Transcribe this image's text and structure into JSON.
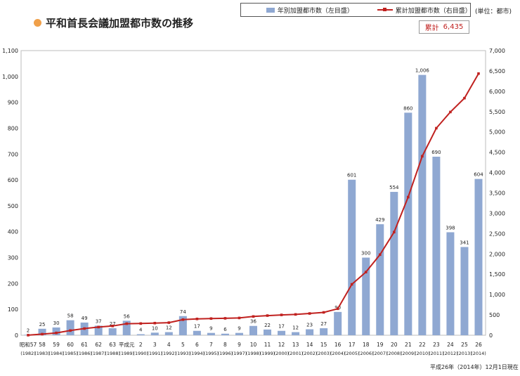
{
  "title": "平和首長会議加盟都市数の推移",
  "legend": {
    "bars_label": "年別加盟都市数（左目盛）",
    "line_label": "累計加盟都市数（右目盛）"
  },
  "unit": "(単位：都市)",
  "total": {
    "label": "累計",
    "value": "6,435"
  },
  "footnote": "平成26年（2014年）12月1日現在",
  "colors": {
    "bar": "#8fa8d2",
    "line": "#c0211f",
    "title_dot": "#f0a04a"
  },
  "chart_data": {
    "type": "bar",
    "categories": [
      "昭和57",
      "58",
      "59",
      "60",
      "61",
      "62",
      "63",
      "平成元",
      "2",
      "3",
      "4",
      "5",
      "6",
      "7",
      "8",
      "9",
      "10",
      "11",
      "12",
      "13",
      "14",
      "15",
      "16",
      "17",
      "18",
      "19",
      "20",
      "21",
      "22",
      "23",
      "24",
      "25",
      "26"
    ],
    "years": [
      "(1982)",
      "(1983)",
      "(1984)",
      "(1985)",
      "(1986)",
      "(1987)",
      "(1988)",
      "(1989)",
      "(1990)",
      "(1991)",
      "(1992)",
      "(1993)",
      "(1994)",
      "(1995)",
      "(1996)",
      "(1997)",
      "(1998)",
      "(1999)",
      "(2000)",
      "(2001)",
      "(2002)",
      "(2003)",
      "(2004)",
      "(2005)",
      "(2006)",
      "(2007)",
      "(2008)",
      "(2009)",
      "(2010)",
      "(2011)",
      "(2012)",
      "(2013)",
      "(2014)"
    ],
    "series": [
      {
        "name": "年別加盟都市数（左目盛）",
        "type": "bar",
        "axis": "left",
        "values": [
          2,
          25,
          30,
          58,
          49,
          37,
          27,
          56,
          4,
          10,
          12,
          74,
          17,
          9,
          6,
          9,
          36,
          22,
          17,
          12,
          23,
          27,
          90,
          601,
          300,
          429,
          554,
          860,
          1006,
          690,
          398,
          341,
          604
        ]
      },
      {
        "name": "累計加盟都市数（右目盛）",
        "type": "line",
        "axis": "right",
        "values": [
          2,
          27,
          57,
          115,
          164,
          201,
          228,
          284,
          288,
          298,
          310,
          384,
          401,
          410,
          416,
          425,
          461,
          483,
          500,
          512,
          535,
          562,
          652,
          1253,
          1553,
          1982,
          2536,
          3396,
          4402,
          5092,
          5490,
          5831,
          6435
        ]
      }
    ],
    "ylim_left": [
      0,
      1100
    ],
    "yticks_left": [
      "0",
      "100",
      "200",
      "300",
      "400",
      "500",
      "600",
      "700",
      "800",
      "900",
      "1,000",
      "1,100"
    ],
    "ylim_right": [
      0,
      7000
    ],
    "yticks_right": [
      "0",
      "500",
      "1,000",
      "1,500",
      "2,000",
      "2,500",
      "3,000",
      "3,500",
      "4,000",
      "4,500",
      "5,000",
      "5,500",
      "6,000",
      "6,500",
      "7,000"
    ],
    "bar_value_labels": [
      "2",
      "25",
      "30",
      "58",
      "49",
      "37",
      "27",
      "56",
      "4",
      "10",
      "12",
      "74",
      "17",
      "9",
      "6",
      "9",
      "36",
      "22",
      "17",
      "12",
      "23",
      "27",
      "90",
      "601",
      "300",
      "429",
      "554",
      "860",
      "1,006",
      "690",
      "398",
      "341",
      "604"
    ]
  }
}
